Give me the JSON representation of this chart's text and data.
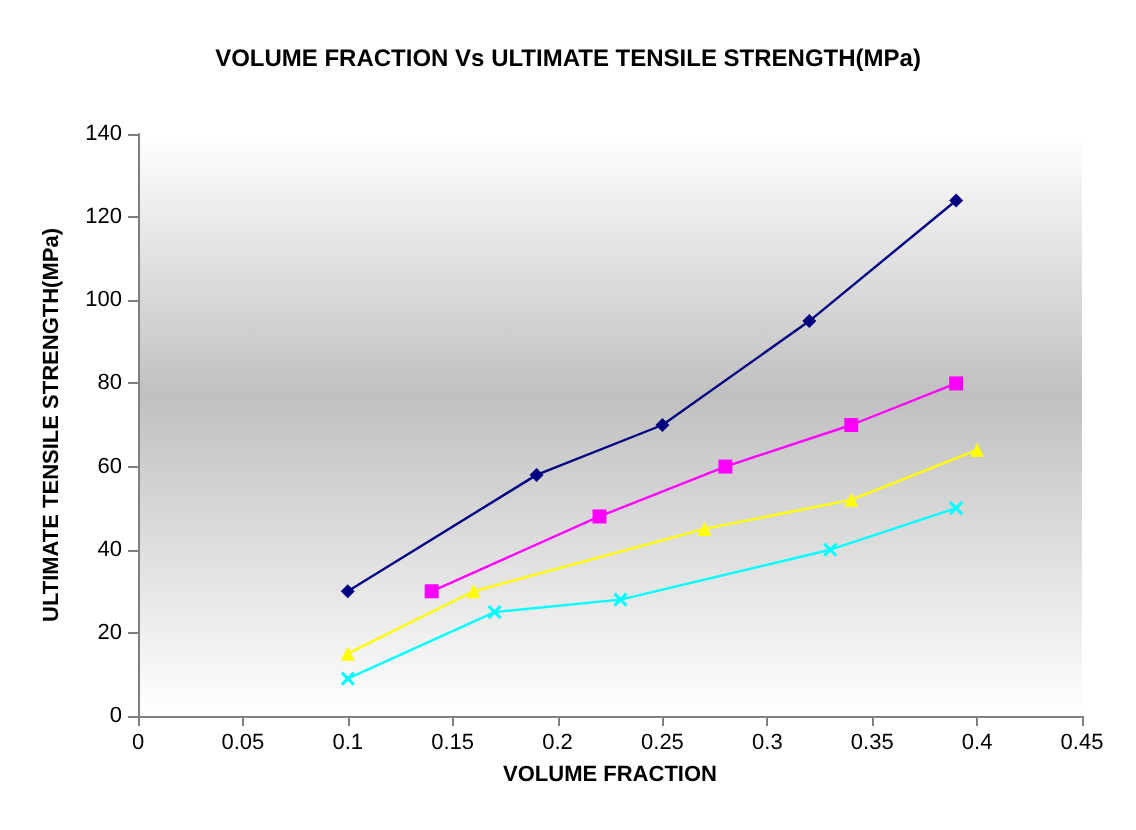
{
  "chart_data": {
    "type": "line",
    "title": "VOLUME FRACTION Vs ULTIMATE TENSILE STRENGTH(MPa)",
    "xlabel": "VOLUME FRACTION",
    "ylabel": "ULTIMATE TENSILE STRENGTH(MPa)",
    "xlim": [
      0,
      0.45
    ],
    "xticks": [
      0,
      0.05,
      0.1,
      0.15,
      0.2,
      0.25,
      0.3,
      0.35,
      0.4,
      0.45
    ],
    "ylim": [
      0,
      140
    ],
    "yticks": [
      0,
      20,
      40,
      60,
      80,
      100,
      120,
      140
    ],
    "grid": false,
    "series": [
      {
        "color": "#000080",
        "marker": "diamond",
        "x": [
          0.1,
          0.19,
          0.25,
          0.32,
          0.39
        ],
        "values": [
          30,
          58,
          70,
          95,
          124
        ]
      },
      {
        "color": "#ff00ff",
        "marker": "square",
        "x": [
          0.14,
          0.22,
          0.28,
          0.34,
          0.39
        ],
        "values": [
          30,
          48,
          60,
          70,
          80
        ]
      },
      {
        "color": "#ffff00",
        "marker": "triangle",
        "x": [
          0.1,
          0.16,
          0.27,
          0.34,
          0.4
        ],
        "values": [
          15,
          30,
          45,
          52,
          64
        ]
      },
      {
        "color": "#00ffff",
        "marker": "cross",
        "x": [
          0.1,
          0.17,
          0.23,
          0.33,
          0.39
        ],
        "values": [
          9,
          25,
          28,
          40,
          50
        ]
      }
    ]
  }
}
